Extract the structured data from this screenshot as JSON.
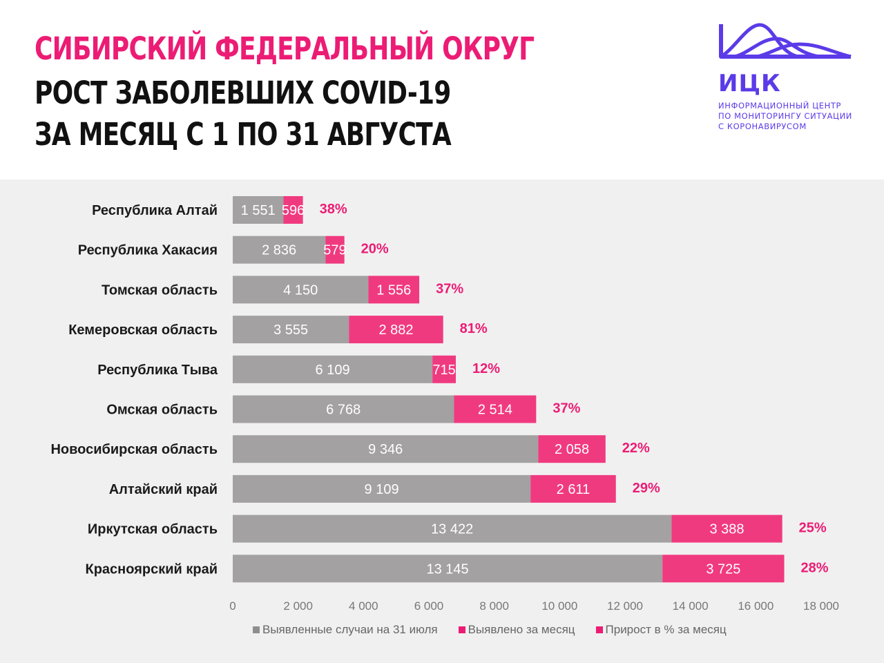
{
  "header": {
    "line1": "СИБИРСКИЙ ФЕДЕРАЛЬНЫЙ ОКРУГ",
    "line2": "РОСТ ЗАБОЛЕВШИХ COVID-19",
    "line3": "ЗА МЕСЯЦ С 1 ПО 31 АВГУСТА"
  },
  "logo": {
    "name": "ИЦК",
    "subtitle_lines": [
      "ИНФОРМАЦИОННЫЙ ЦЕНТР",
      "ПО МОНИТОРИНГУ СИТУАЦИИ",
      "С КОРОНАВИРУСОМ"
    ]
  },
  "colors": {
    "accent": "#ec1c75",
    "logo": "#5b3be8",
    "gray_bar": "#a3a1a1",
    "pink_bar": "#f03a80",
    "background": "#f1f0f0",
    "title_dark": "#111111"
  },
  "chart_data": {
    "type": "bar",
    "orientation": "horizontal",
    "stacked": true,
    "categories": [
      "Республика Алтай",
      "Республика Хакасия",
      "Томская область",
      "Кемеровская область",
      "Республика Тыва",
      "Омская область",
      "Новосибирская область",
      "Алтайский край",
      "Иркутская область",
      "Красноярский край"
    ],
    "series": [
      {
        "name": "Выявленные случаи на 31 июля",
        "color": "#a3a1a1",
        "values": [
          1551,
          2836,
          4150,
          3555,
          6109,
          6768,
          9346,
          9109,
          13422,
          13145
        ],
        "labels": [
          "1 551",
          "2 836",
          "4 150",
          "3 555",
          "6 109",
          "6 768",
          "9 346",
          "9 109",
          "13 422",
          "13 145"
        ]
      },
      {
        "name": "Выявлено за месяц",
        "color": "#f03a80",
        "values": [
          596,
          579,
          1556,
          2882,
          715,
          2514,
          2058,
          2611,
          3388,
          3725
        ],
        "labels": [
          "596",
          "579",
          "1 556",
          "2 882",
          "715",
          "2 514",
          "2 058",
          "2 611",
          "3 388",
          "3 725"
        ]
      },
      {
        "name": "Прирост в % за месяц",
        "color": "#ec1c75",
        "values": [
          38,
          20,
          37,
          81,
          12,
          37,
          22,
          29,
          25,
          28
        ],
        "labels": [
          "38%",
          "20%",
          "37%",
          "81%",
          "12%",
          "37%",
          "22%",
          "29%",
          "25%",
          "28%"
        ]
      }
    ],
    "x_ticks": [
      0,
      2000,
      4000,
      6000,
      8000,
      10000,
      12000,
      14000,
      16000,
      18000
    ],
    "x_tick_labels": [
      "0",
      "2 000",
      "4 000",
      "6 000",
      "8 000",
      "10 000",
      "12 000",
      "14 000",
      "16 000",
      "18 000"
    ],
    "xlim": [
      0,
      18000
    ],
    "grid": false,
    "legend_position": "bottom"
  }
}
